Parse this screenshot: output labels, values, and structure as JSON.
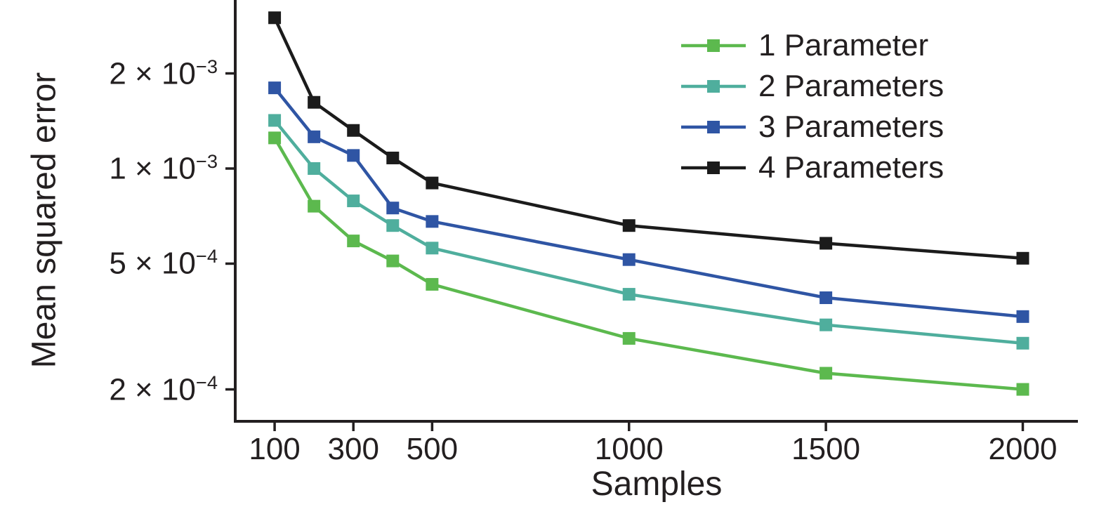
{
  "chart_data": {
    "type": "line",
    "title": "",
    "xlabel": "Samples",
    "ylabel": "Mean squared error",
    "x_scale": "linear",
    "y_scale": "log",
    "xlim": [
      0,
      2140
    ],
    "ylim": [
      0.00016,
      0.0034
    ],
    "grid": false,
    "legend_position": "upper right",
    "x": [
      100,
      200,
      300,
      400,
      500,
      1000,
      1500,
      2000
    ],
    "series": [
      {
        "name": "1 Parameter",
        "color": "#5cb94e",
        "marker": "square",
        "values": [
          0.00125,
          0.00076,
          0.00059,
          0.00051,
          0.00043,
          0.00029,
          0.000225,
          0.0002
        ]
      },
      {
        "name": "2 Parameters",
        "color": "#4fae9d",
        "marker": "square",
        "values": [
          0.00142,
          0.001,
          0.00079,
          0.00066,
          0.00056,
          0.0004,
          0.00032,
          0.00028
        ]
      },
      {
        "name": "3 Parameters",
        "color": "#2f55a4",
        "marker": "square",
        "values": [
          0.0018,
          0.00126,
          0.0011,
          0.00075,
          0.00068,
          0.000515,
          0.00039,
          0.00034
        ]
      },
      {
        "name": "4 Parameters",
        "color": "#1b1b1b",
        "marker": "square",
        "values": [
          0.003,
          0.00162,
          0.00132,
          0.00108,
          0.0009,
          0.00066,
          0.00058,
          0.00052
        ]
      }
    ],
    "yticks": [
      {
        "value": 0.002,
        "mantissa": "2 × 10",
        "exp": "−3"
      },
      {
        "value": 0.001,
        "mantissa": "1 × 10",
        "exp": "−3"
      },
      {
        "value": 0.0005,
        "mantissa": "5 × 10",
        "exp": "−4"
      },
      {
        "value": 0.0002,
        "mantissa": "2 × 10",
        "exp": "−4"
      }
    ],
    "xticks": [
      {
        "value": 100,
        "label": "100"
      },
      {
        "value": 300,
        "label": "300"
      },
      {
        "value": 500,
        "label": "500"
      },
      {
        "value": 1000,
        "label": "1000"
      },
      {
        "value": 1500,
        "label": "1500"
      },
      {
        "value": 2000,
        "label": "2000"
      }
    ]
  },
  "colors": {
    "axis": "#231f20",
    "text": "#231f20",
    "background": "#ffffff"
  }
}
